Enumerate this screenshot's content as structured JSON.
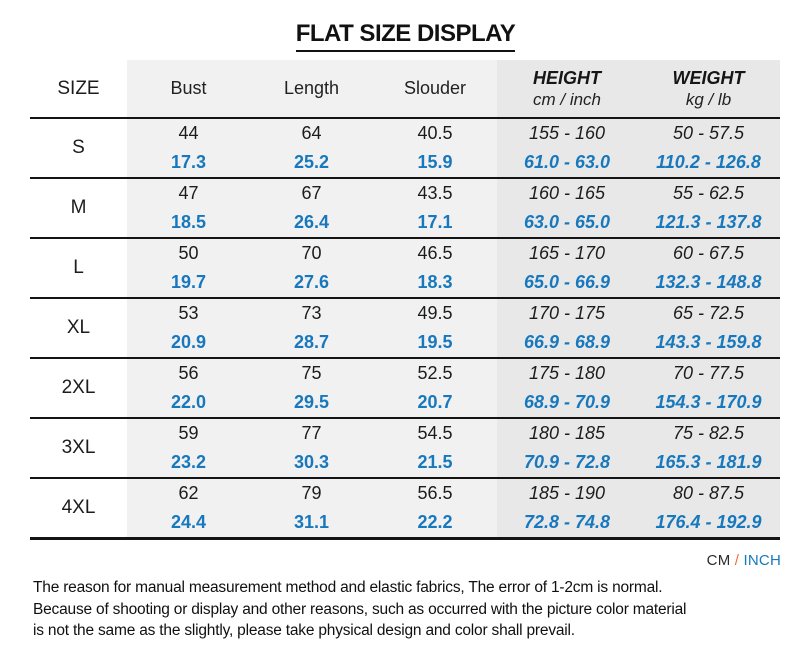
{
  "title": "FLAT SIZE DISPLAY",
  "table": {
    "headers": {
      "size": "SIZE",
      "bust": "Bust",
      "length": "Length",
      "shoulder": "Slouder",
      "height_label": "HEIGHT",
      "height_sub": "cm / inch",
      "weight_label": "WEIGHT",
      "weight_sub": "kg / lb"
    },
    "rows": [
      {
        "size": "S",
        "bust_cm": "44",
        "bust_in": "17.3",
        "length_cm": "64",
        "length_in": "25.2",
        "shoulder_cm": "40.5",
        "shoulder_in": "15.9",
        "height_cm": "155 - 160",
        "height_in": "61.0 - 63.0",
        "weight_kg": "50 - 57.5",
        "weight_lb": "110.2 - 126.8"
      },
      {
        "size": "M",
        "bust_cm": "47",
        "bust_in": "18.5",
        "length_cm": "67",
        "length_in": "26.4",
        "shoulder_cm": "43.5",
        "shoulder_in": "17.1",
        "height_cm": "160 - 165",
        "height_in": "63.0 - 65.0",
        "weight_kg": "55 - 62.5",
        "weight_lb": "121.3 - 137.8"
      },
      {
        "size": "L",
        "bust_cm": "50",
        "bust_in": "19.7",
        "length_cm": "70",
        "length_in": "27.6",
        "shoulder_cm": "46.5",
        "shoulder_in": "18.3",
        "height_cm": "165 - 170",
        "height_in": "65.0 - 66.9",
        "weight_kg": "60 - 67.5",
        "weight_lb": "132.3 - 148.8"
      },
      {
        "size": "XL",
        "bust_cm": "53",
        "bust_in": "20.9",
        "length_cm": "73",
        "length_in": "28.7",
        "shoulder_cm": "49.5",
        "shoulder_in": "19.5",
        "height_cm": "170 - 175",
        "height_in": "66.9 - 68.9",
        "weight_kg": "65 - 72.5",
        "weight_lb": "143.3 - 159.8"
      },
      {
        "size": "2XL",
        "bust_cm": "56",
        "bust_in": "22.0",
        "length_cm": "75",
        "length_in": "29.5",
        "shoulder_cm": "52.5",
        "shoulder_in": "20.7",
        "height_cm": "175 - 180",
        "height_in": "68.9 - 70.9",
        "weight_kg": "70 - 77.5",
        "weight_lb": "154.3 - 170.9"
      },
      {
        "size": "3XL",
        "bust_cm": "59",
        "bust_in": "23.2",
        "length_cm": "77",
        "length_in": "30.3",
        "shoulder_cm": "54.5",
        "shoulder_in": "21.5",
        "height_cm": "180 - 185",
        "height_in": "70.9 - 72.8",
        "weight_kg": "75 - 82.5",
        "weight_lb": "165.3 - 181.9"
      },
      {
        "size": "4XL",
        "bust_cm": "62",
        "bust_in": "24.4",
        "length_cm": "79",
        "length_in": "31.1",
        "shoulder_cm": "56.5",
        "shoulder_in": "22.2",
        "height_cm": "185 - 190",
        "height_in": "72.8 - 74.8",
        "weight_kg": "80 - 87.5",
        "weight_lb": "176.4 - 192.9"
      }
    ]
  },
  "footer": {
    "unit_cm": "CM",
    "unit_sep": "/",
    "unit_inch": "INCH",
    "note_lines": [
      "The reason for manual measurement method and elastic fabrics, The error of 1-2cm is normal.",
      "Because of shooting or display and other reasons, such as occurred with the picture color material",
      "is not the same as the slightly, please take physical design and color shall prevail."
    ]
  },
  "colors": {
    "inch_blue": "#1778bd",
    "slash_orange": "#ed6f3c",
    "column_light_gray": "#f1f1f2",
    "column_dark_gray": "#e8e8e9",
    "text_black": "#1c1c1c"
  }
}
